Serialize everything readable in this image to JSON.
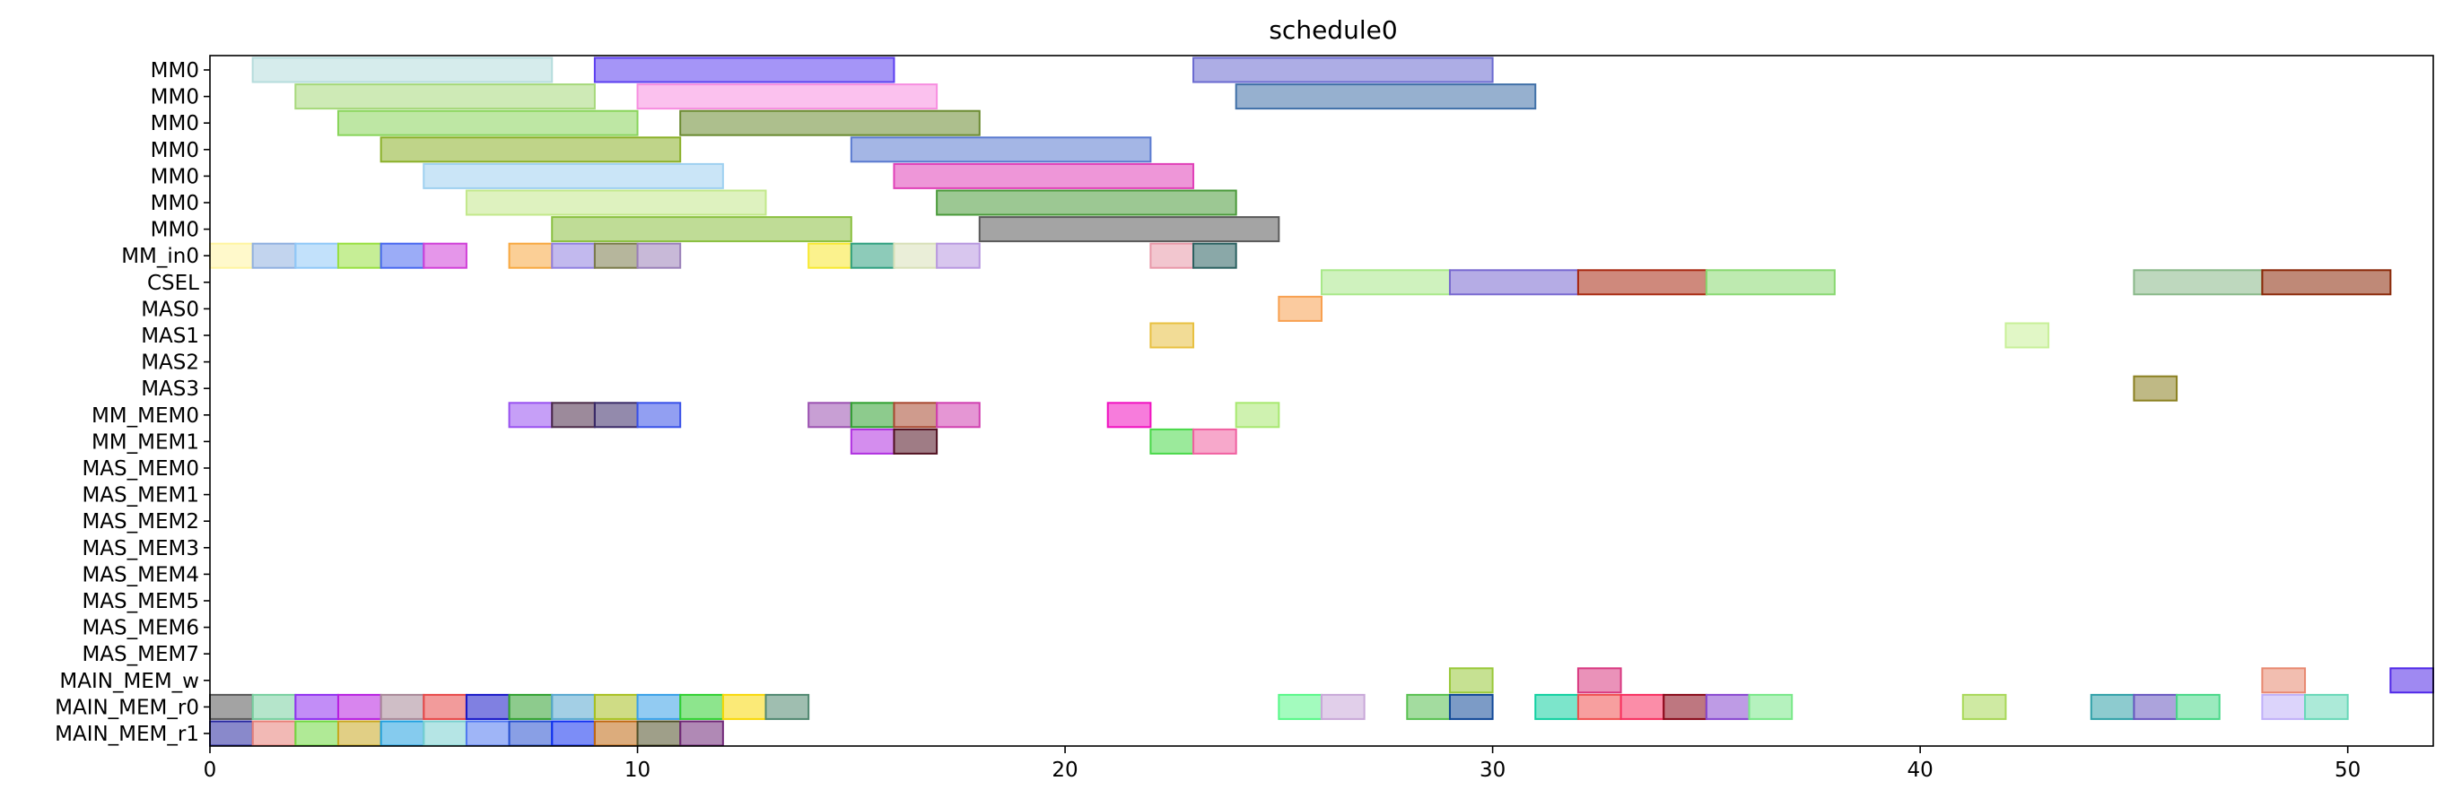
{
  "chart_data": {
    "type": "gantt",
    "title": "schedule0",
    "xlim": [
      0,
      52
    ],
    "xticks": [
      0,
      10,
      20,
      30,
      40,
      50
    ],
    "rows": [
      "MM0",
      "MM0",
      "MM0",
      "MM0",
      "MM0",
      "MM0",
      "MM0",
      "MM_in0",
      "CSEL",
      "MAS0",
      "MAS1",
      "MAS2",
      "MAS3",
      "MM_MEM0",
      "MM_MEM1",
      "MAS_MEM0",
      "MAS_MEM1",
      "MAS_MEM2",
      "MAS_MEM3",
      "MAS_MEM4",
      "MAS_MEM5",
      "MAS_MEM6",
      "MAS_MEM7",
      "MAIN_MEM_w",
      "MAIN_MEM_r0",
      "MAIN_MEM_r1"
    ],
    "tasks": [
      {
        "row": 0,
        "start": 1,
        "end": 8,
        "color": "#b5dcdc"
      },
      {
        "row": 0,
        "start": 9,
        "end": 16,
        "color": "#5b3ef0"
      },
      {
        "row": 0,
        "start": 23,
        "end": 30,
        "color": "#6a6ad0"
      },
      {
        "row": 1,
        "start": 2,
        "end": 9,
        "color": "#a6d87a"
      },
      {
        "row": 1,
        "start": 10,
        "end": 17,
        "color": "#f78ee0"
      },
      {
        "row": 1,
        "start": 24,
        "end": 31,
        "color": "#4070a8"
      },
      {
        "row": 2,
        "start": 3,
        "end": 10,
        "color": "#88d45a"
      },
      {
        "row": 2,
        "start": 11,
        "end": 18,
        "color": "#6a8a30"
      },
      {
        "row": 3,
        "start": 4,
        "end": 11,
        "color": "#8ab028"
      },
      {
        "row": 3,
        "start": 15,
        "end": 22,
        "color": "#5a7ad0"
      },
      {
        "row": 4,
        "start": 5,
        "end": 12,
        "color": "#9ed0f0"
      },
      {
        "row": 4,
        "start": 16,
        "end": 23,
        "color": "#e040b8"
      },
      {
        "row": 5,
        "start": 6,
        "end": 13,
        "color": "#c2e88a"
      },
      {
        "row": 5,
        "start": 17,
        "end": 24,
        "color": "#4a9a3a"
      },
      {
        "row": 6,
        "start": 8,
        "end": 15,
        "color": "#8ac040"
      },
      {
        "row": 6,
        "start": 18,
        "end": 25,
        "color": "#5a5a5a"
      },
      {
        "row": 7,
        "start": 0,
        "end": 1,
        "color": "#fff4a0"
      },
      {
        "row": 7,
        "start": 1,
        "end": 2,
        "color": "#90b0e0"
      },
      {
        "row": 7,
        "start": 2,
        "end": 3,
        "color": "#90c8f8"
      },
      {
        "row": 7,
        "start": 3,
        "end": 4,
        "color": "#98e040"
      },
      {
        "row": 7,
        "start": 4,
        "end": 5,
        "color": "#4868f0"
      },
      {
        "row": 7,
        "start": 5,
        "end": 6,
        "color": "#d040d8"
      },
      {
        "row": 7,
        "start": 7,
        "end": 8,
        "color": "#f8a840"
      },
      {
        "row": 7,
        "start": 8,
        "end": 9,
        "color": "#9080e0"
      },
      {
        "row": 7,
        "start": 9,
        "end": 10,
        "color": "#7a7a4a"
      },
      {
        "row": 7,
        "start": 10,
        "end": 11,
        "color": "#9a80b8"
      },
      {
        "row": 7,
        "start": 14,
        "end": 15,
        "color": "#f8e830"
      },
      {
        "row": 7,
        "start": 15,
        "end": 16,
        "color": "#30a080"
      },
      {
        "row": 7,
        "start": 16,
        "end": 17,
        "color": "#d8e0b8"
      },
      {
        "row": 7,
        "start": 17,
        "end": 18,
        "color": "#b898e0"
      },
      {
        "row": 7,
        "start": 22,
        "end": 23,
        "color": "#e898a8"
      },
      {
        "row": 7,
        "start": 23,
        "end": 24,
        "color": "#2a6060"
      },
      {
        "row": 8,
        "start": 26,
        "end": 29,
        "color": "#a8e888"
      },
      {
        "row": 8,
        "start": 29,
        "end": 32,
        "color": "#7868d0"
      },
      {
        "row": 8,
        "start": 32,
        "end": 35,
        "color": "#a82810"
      },
      {
        "row": 8,
        "start": 35,
        "end": 38,
        "color": "#88d870"
      },
      {
        "row": 8,
        "start": 45,
        "end": 48,
        "color": "#88b888"
      },
      {
        "row": 8,
        "start": 48,
        "end": 51,
        "color": "#8a2808"
      },
      {
        "row": 9,
        "start": 25,
        "end": 26,
        "color": "#f8a050"
      },
      {
        "row": 10,
        "start": 22,
        "end": 23,
        "color": "#e8c040"
      },
      {
        "row": 10,
        "start": 42,
        "end": 43,
        "color": "#c8f098"
      },
      {
        "row": 12,
        "start": 45,
        "end": 46,
        "color": "#8a8020"
      },
      {
        "row": 13,
        "start": 7,
        "end": 8,
        "color": "#9850f0"
      },
      {
        "row": 13,
        "start": 8,
        "end": 9,
        "color": "#4a2a48"
      },
      {
        "row": 13,
        "start": 9,
        "end": 10,
        "color": "#3a2a68"
      },
      {
        "row": 13,
        "start": 10,
        "end": 11,
        "color": "#3850e8"
      },
      {
        "row": 13,
        "start": 14,
        "end": 15,
        "color": "#9a50b0"
      },
      {
        "row": 13,
        "start": 15,
        "end": 16,
        "color": "#30a030"
      },
      {
        "row": 13,
        "start": 16,
        "end": 17,
        "color": "#a84830"
      },
      {
        "row": 13,
        "start": 17,
        "end": 18,
        "color": "#d040b0"
      },
      {
        "row": 13,
        "start": 21,
        "end": 22,
        "color": "#f010c0"
      },
      {
        "row": 13,
        "start": 24,
        "end": 25,
        "color": "#a8e870"
      },
      {
        "row": 14,
        "start": 15,
        "end": 16,
        "color": "#b030e0"
      },
      {
        "row": 14,
        "start": 16,
        "end": 17,
        "color": "#501020"
      },
      {
        "row": 14,
        "start": 22,
        "end": 23,
        "color": "#48d848"
      },
      {
        "row": 14,
        "start": 23,
        "end": 24,
        "color": "#f060a0"
      },
      {
        "row": 23,
        "start": 29,
        "end": 30,
        "color": "#98c838"
      },
      {
        "row": 23,
        "start": 32,
        "end": 33,
        "color": "#d83880"
      },
      {
        "row": 23,
        "start": 48,
        "end": 49,
        "color": "#e88870"
      },
      {
        "row": 23,
        "start": 51,
        "end": 52,
        "color": "#5028e8"
      },
      {
        "row": 24,
        "start": 0,
        "end": 1,
        "color": "#585858"
      },
      {
        "row": 24,
        "start": 1,
        "end": 2,
        "color": "#78d0a0"
      },
      {
        "row": 24,
        "start": 2,
        "end": 3,
        "color": "#9030f0"
      },
      {
        "row": 24,
        "start": 3,
        "end": 4,
        "color": "#b820e0"
      },
      {
        "row": 24,
        "start": 4,
        "end": 5,
        "color": "#a88898"
      },
      {
        "row": 24,
        "start": 5,
        "end": 6,
        "color": "#e84848"
      },
      {
        "row": 24,
        "start": 6,
        "end": 7,
        "color": "#1818c8"
      },
      {
        "row": 24,
        "start": 7,
        "end": 8,
        "color": "#30a030"
      },
      {
        "row": 24,
        "start": 8,
        "end": 9,
        "color": "#58a8d0"
      },
      {
        "row": 24,
        "start": 9,
        "end": 10,
        "color": "#a8c020"
      },
      {
        "row": 24,
        "start": 10,
        "end": 11,
        "color": "#38a0e8"
      },
      {
        "row": 24,
        "start": 11,
        "end": 12,
        "color": "#30d030"
      },
      {
        "row": 24,
        "start": 12,
        "end": 13,
        "color": "#f8d808"
      },
      {
        "row": 24,
        "start": 13,
        "end": 14,
        "color": "#508870"
      },
      {
        "row": 24,
        "start": 25,
        "end": 26,
        "color": "#58f888"
      },
      {
        "row": 24,
        "start": 26,
        "end": 27,
        "color": "#c8a8d8"
      },
      {
        "row": 24,
        "start": 28,
        "end": 29,
        "color": "#58c050"
      },
      {
        "row": 24,
        "start": 29,
        "end": 30,
        "color": "#104898"
      },
      {
        "row": 24,
        "start": 31,
        "end": 32,
        "color": "#10d0a0"
      },
      {
        "row": 24,
        "start": 32,
        "end": 33,
        "color": "#f05050"
      },
      {
        "row": 24,
        "start": 33,
        "end": 34,
        "color": "#f83060"
      },
      {
        "row": 24,
        "start": 34,
        "end": 35,
        "color": "#880818"
      },
      {
        "row": 24,
        "start": 35,
        "end": 36,
        "color": "#8848d0"
      },
      {
        "row": 24,
        "start": 36,
        "end": 37,
        "color": "#78e888"
      },
      {
        "row": 24,
        "start": 41,
        "end": 42,
        "color": "#a8d858"
      },
      {
        "row": 24,
        "start": 44,
        "end": 45,
        "color": "#30a0a8"
      },
      {
        "row": 24,
        "start": 45,
        "end": 46,
        "color": "#6858c0"
      },
      {
        "row": 24,
        "start": 46,
        "end": 47,
        "color": "#48d888"
      },
      {
        "row": 24,
        "start": 48,
        "end": 49,
        "color": "#c0b0f8"
      },
      {
        "row": 24,
        "start": 49,
        "end": 50,
        "color": "#68d8b8"
      },
      {
        "row": 25,
        "start": 0,
        "end": 1,
        "color": "#2828a0"
      },
      {
        "row": 25,
        "start": 1,
        "end": 2,
        "color": "#e88078"
      },
      {
        "row": 25,
        "start": 2,
        "end": 3,
        "color": "#70d840"
      },
      {
        "row": 25,
        "start": 3,
        "end": 4,
        "color": "#c8a820"
      },
      {
        "row": 25,
        "start": 4,
        "end": 5,
        "color": "#20a0e0"
      },
      {
        "row": 25,
        "start": 5,
        "end": 6,
        "color": "#78d0d0"
      },
      {
        "row": 25,
        "start": 6,
        "end": 7,
        "color": "#5078f0"
      },
      {
        "row": 25,
        "start": 7,
        "end": 8,
        "color": "#2850d0"
      },
      {
        "row": 25,
        "start": 8,
        "end": 9,
        "color": "#1030f0"
      },
      {
        "row": 25,
        "start": 9,
        "end": 10,
        "color": "#c06810"
      },
      {
        "row": 25,
        "start": 10,
        "end": 11,
        "color": "#505028"
      },
      {
        "row": 25,
        "start": 11,
        "end": 12,
        "color": "#702878"
      }
    ]
  }
}
